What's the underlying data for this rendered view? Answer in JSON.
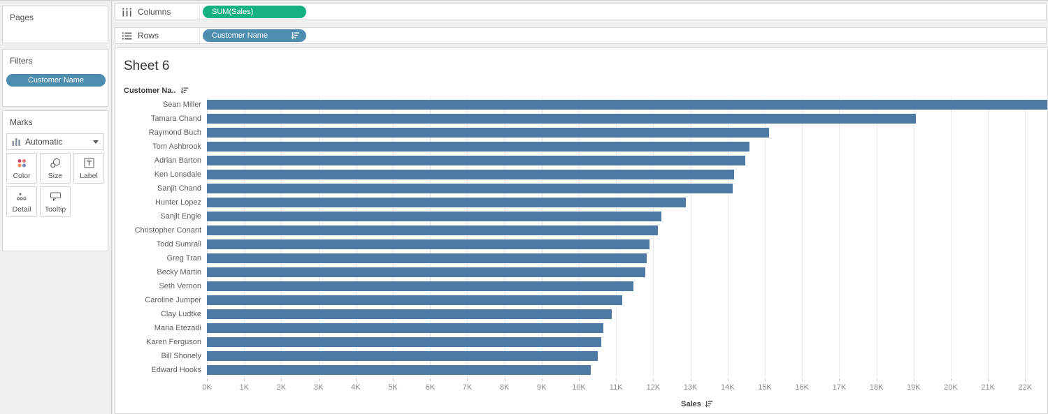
{
  "colors": {
    "bar": "#4e79a7",
    "pill_green": "#15b182",
    "pill_blue": "#4d8eb0",
    "gridline": "#e9e9e9"
  },
  "sidebar": {
    "pages": {
      "title": "Pages"
    },
    "filters": {
      "title": "Filters",
      "pill_label": "Customer Name"
    },
    "marks": {
      "title": "Marks",
      "mark_type_label": "Automatic",
      "buttons": [
        {
          "label": "Color"
        },
        {
          "label": "Size"
        },
        {
          "label": "Label"
        },
        {
          "label": "Detail"
        },
        {
          "label": "Tooltip"
        }
      ]
    }
  },
  "shelves": {
    "columns": {
      "label": "Columns",
      "pill_label": "SUM(Sales)"
    },
    "rows": {
      "label": "Rows",
      "pill_label": "Customer Name",
      "pill_sorted": true
    }
  },
  "sheet": {
    "title": "Sheet 6",
    "row_field_header": "Customer Na..",
    "axis_title": "Sales"
  },
  "chart_data": {
    "type": "bar",
    "orientation": "horizontal",
    "title": "Sheet 6",
    "xlabel": "Sales",
    "ylabel": "Customer Name",
    "sort": "descending by SUM(Sales)",
    "categories": [
      "Sean Miller",
      "Tamara Chand",
      "Raymond Buch",
      "Tom Ashbrook",
      "Adrian Barton",
      "Ken Lonsdale",
      "Sanjit Chand",
      "Hunter Lopez",
      "Sanjit Engle",
      "Christopher Conant",
      "Todd Sumrall",
      "Greg Tran",
      "Becky Martin",
      "Seth Vernon",
      "Caroline Jumper",
      "Clay Ludtke",
      "Maria Etezadi",
      "Karen Ferguson",
      "Bill Shonely",
      "Edward Hooks"
    ],
    "values": [
      25043,
      19052,
      15117,
      14596,
      14474,
      14175,
      14142,
      12873,
      12209,
      12129,
      11892,
      11820,
      11790,
      11471,
      11165,
      10881,
      10664,
      10604,
      10502,
      10311
    ],
    "xlim": [
      0,
      22632
    ],
    "x_tick_values": [
      0,
      1000,
      2000,
      3000,
      4000,
      5000,
      6000,
      7000,
      8000,
      9000,
      10000,
      11000,
      12000,
      13000,
      14000,
      15000,
      16000,
      17000,
      18000,
      19000,
      20000,
      21000,
      22000
    ],
    "x_tick_labels": [
      "0K",
      "1K",
      "2K",
      "3K",
      "4K",
      "5K",
      "6K",
      "7K",
      "8K",
      "9K",
      "10K",
      "11K",
      "12K",
      "13K",
      "14K",
      "15K",
      "16K",
      "17K",
      "18K",
      "19K",
      "20K",
      "21K",
      "22K"
    ],
    "grid": "vertical gridlines at each 1K",
    "note": "First bar (Sean Miller) is clipped at the right edge of the view",
    "bar_color": "#4e79a7"
  }
}
